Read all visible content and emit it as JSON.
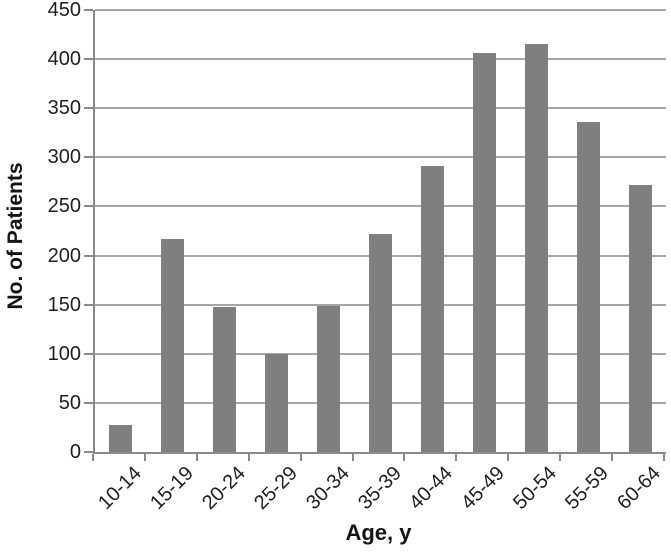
{
  "chart_data": {
    "type": "bar",
    "title": "",
    "xlabel": "Age, y",
    "ylabel": "No. of Patients",
    "categories": [
      "10-14",
      "15-19",
      "20-24",
      "25-29",
      "30-34",
      "35-39",
      "40-44",
      "45-49",
      "50-54",
      "55-59",
      "60-64"
    ],
    "values": [
      27,
      217,
      148,
      100,
      149,
      222,
      291,
      406,
      415,
      336,
      272
    ],
    "ylim": [
      0,
      450
    ],
    "ytick_step": 50,
    "ytick_labels": [
      "0",
      "50",
      "100",
      "150",
      "200",
      "250",
      "300",
      "350",
      "400",
      "450"
    ],
    "grid": "horizontal",
    "legend_position": "none",
    "bar_color": "#7f7f7f",
    "gridline_color": "#a6a6a6",
    "axis_color": "#8a8a8a",
    "text_color": "#1f1f1f"
  }
}
